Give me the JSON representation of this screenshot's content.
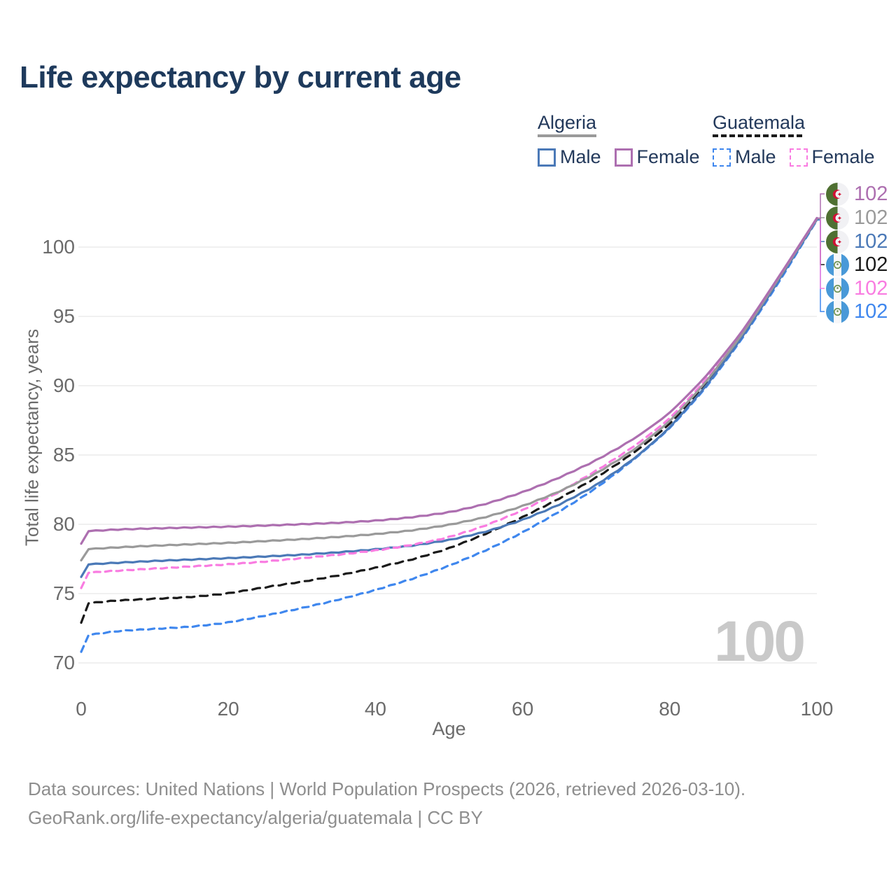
{
  "title": "Life expectancy by current age",
  "legend": {
    "groups": [
      {
        "country": "Algeria",
        "items": [
          {
            "label": "Male"
          },
          {
            "label": "Female"
          }
        ]
      },
      {
        "country": "Guatemala",
        "items": [
          {
            "label": "Male"
          },
          {
            "label": "Female"
          }
        ]
      }
    ]
  },
  "colors": {
    "title": "#1e3a5c",
    "legend_text": "#23395b",
    "axis": "#6b6b6b",
    "grid": "#e8e8e8",
    "footer": "#8e8e8e",
    "watermark": "#c9c9c9",
    "algeria_male": "#4b79b7",
    "algeria_female": "#ad6fb0",
    "algeria_both": "#9a9a9a",
    "guatemala_male": "#3f87ee",
    "guatemala_female": "#f97ce1",
    "guatemala_both": "#1a1a1a",
    "algeria_flag_green": "#4f7032",
    "algeria_flag_red": "#d21034",
    "guatemala_flag_blue": "#4999d8",
    "guatemala_flag_emblem": "#6f9455"
  },
  "chart_data": {
    "type": "line",
    "title": "Life expectancy by current age",
    "xlabel": "Age",
    "ylabel": "Total life expectancy, years",
    "xlim": [
      0,
      100
    ],
    "ylim": [
      70,
      102.5
    ],
    "x_ticks": [
      0,
      20,
      40,
      60,
      80,
      100
    ],
    "y_ticks": [
      70,
      75,
      80,
      85,
      90,
      95,
      100
    ],
    "grid": "horizontal-only",
    "legend_position": "top-right",
    "watermark": "100",
    "ages": [
      0,
      1,
      5,
      10,
      15,
      20,
      25,
      30,
      35,
      40,
      45,
      50,
      55,
      60,
      65,
      70,
      75,
      80,
      85,
      90,
      95,
      100
    ],
    "series": [
      {
        "id": "guatemala-male",
        "name": "Guatemala Male",
        "country": "Guatemala",
        "sex": "Male",
        "color_key": "guatemala_male",
        "dash": "9 7",
        "row": 5,
        "end_value": 102,
        "values": [
          70.8,
          72.0,
          72.3,
          72.45,
          72.6,
          72.9,
          73.4,
          73.95,
          74.55,
          75.25,
          76.05,
          77.0,
          78.1,
          79.4,
          80.9,
          82.6,
          84.6,
          86.9,
          89.9,
          93.5,
          97.6,
          101.95
        ]
      },
      {
        "id": "guatemala-both",
        "name": "Guatemala Both sexes",
        "country": "Guatemala",
        "sex": "Both",
        "color_key": "guatemala_both",
        "dash": "11 8",
        "row": 3,
        "end_value": 102,
        "values": [
          72.9,
          74.3,
          74.5,
          74.62,
          74.75,
          75.0,
          75.45,
          75.85,
          76.3,
          76.85,
          77.45,
          78.25,
          79.3,
          80.5,
          81.85,
          83.35,
          85.1,
          87.2,
          90.15,
          93.7,
          97.8,
          102.0
        ]
      },
      {
        "id": "algeria-male",
        "name": "Algeria Male",
        "country": "Algeria",
        "sex": "Male",
        "color_key": "algeria_male",
        "dash": null,
        "row": 2,
        "end_value": 102,
        "values": [
          76.2,
          77.1,
          77.22,
          77.35,
          77.45,
          77.55,
          77.67,
          77.8,
          77.97,
          78.18,
          78.45,
          78.85,
          79.45,
          80.3,
          81.4,
          82.8,
          84.65,
          86.95,
          90.0,
          93.6,
          97.75,
          102.0
        ]
      },
      {
        "id": "guatemala-female",
        "name": "Guatemala Female",
        "country": "Guatemala",
        "sex": "Female",
        "color_key": "guatemala_female",
        "dash": "9 7",
        "row": 4,
        "end_value": 102,
        "values": [
          75.4,
          76.5,
          76.65,
          76.8,
          76.95,
          77.1,
          77.3,
          77.55,
          77.8,
          78.1,
          78.5,
          79.05,
          79.9,
          81.0,
          82.3,
          83.85,
          85.55,
          87.6,
          90.45,
          93.95,
          97.95,
          102.05
        ]
      },
      {
        "id": "algeria-both",
        "name": "Algeria Both sexes",
        "country": "Algeria",
        "sex": "Both",
        "color_key": "algeria_both",
        "dash": null,
        "row": 1,
        "end_value": 102,
        "values": [
          77.4,
          78.2,
          78.33,
          78.45,
          78.55,
          78.65,
          78.78,
          78.92,
          79.08,
          79.28,
          79.55,
          79.95,
          80.5,
          81.3,
          82.35,
          83.65,
          85.3,
          87.4,
          90.3,
          93.8,
          97.9,
          102.05
        ]
      },
      {
        "id": "algeria-female",
        "name": "Algeria Female",
        "country": "Algeria",
        "sex": "Female",
        "color_key": "algeria_female",
        "dash": null,
        "row": 0,
        "end_value": 102,
        "values": [
          78.6,
          79.5,
          79.62,
          79.7,
          79.76,
          79.82,
          79.9,
          80.0,
          80.1,
          80.25,
          80.5,
          80.85,
          81.45,
          82.3,
          83.35,
          84.6,
          86.1,
          88.0,
          90.7,
          94.0,
          98.0,
          102.1
        ]
      }
    ]
  },
  "end_labels": [
    {
      "flag": "algeria",
      "value": "102",
      "color_key": "algeria_female"
    },
    {
      "flag": "algeria",
      "value": "102",
      "color_key": "algeria_both"
    },
    {
      "flag": "algeria",
      "value": "102",
      "color_key": "algeria_male"
    },
    {
      "flag": "guatemala",
      "value": "102",
      "color_key": "guatemala_both"
    },
    {
      "flag": "guatemala",
      "value": "102",
      "color_key": "guatemala_female"
    },
    {
      "flag": "guatemala",
      "value": "102",
      "color_key": "guatemala_male"
    }
  ],
  "footer": {
    "line1": "Data sources: United Nations | World Population Prospects (2026, retrieved 2026-03-10).",
    "line2": "GeoRank.org/life-expectancy/algeria/guatemala | CC BY"
  }
}
